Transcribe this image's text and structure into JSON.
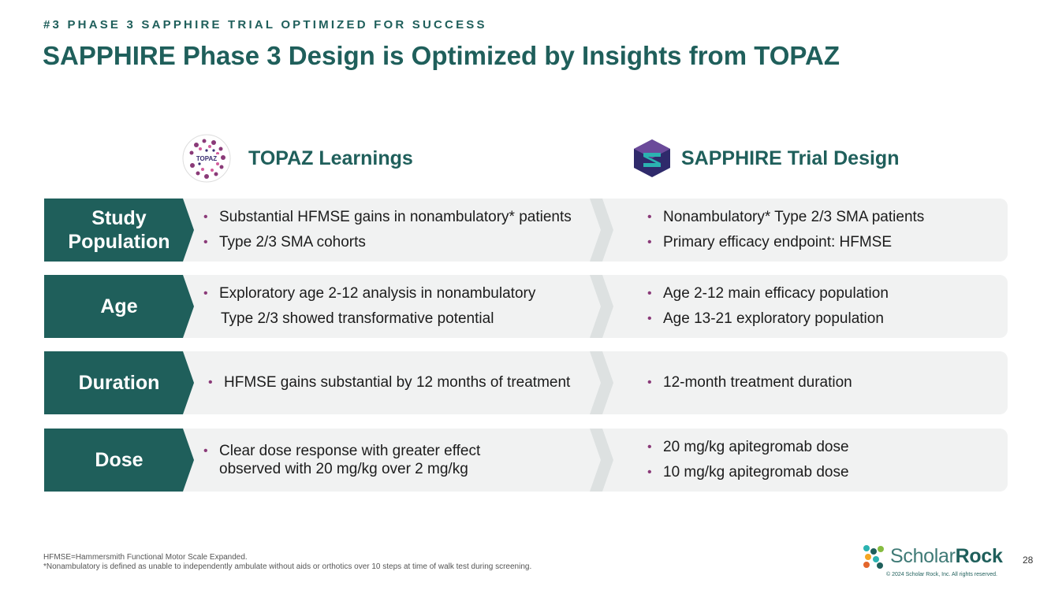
{
  "header": {
    "eyebrow": "#3 PHASE 3 SAPPHIRE TRIAL OPTIMIZED FOR SUCCESS",
    "title": "SAPPHIRE Phase 3 Design is Optimized by Insights from TOPAZ"
  },
  "columns": {
    "topaz": {
      "logo_text": "TOPAZ",
      "heading": "TOPAZ Learnings"
    },
    "sapphire": {
      "heading": "SAPPHIRE Trial Design"
    }
  },
  "colors": {
    "primary": "#1f5f5b",
    "row_bg": "#f1f2f2",
    "bullet": "#8a3a78"
  },
  "rows": [
    {
      "label_line1": "Study",
      "label_line2": "Population",
      "left": [
        "Substantial HFMSE gains in nonambulatory* patients",
        "Type 2/3 SMA cohorts"
      ],
      "right": [
        "Nonambulatory* Type 2/3 SMA patients",
        "Primary efficacy endpoint: HFMSE"
      ]
    },
    {
      "label": "Age",
      "left_line1": "Exploratory age 2-12 analysis in nonambulatory",
      "left_line2": "Type 2/3 showed transformative potential",
      "right": [
        "Age 2-12 main efficacy population",
        "Age 13-21 exploratory population"
      ]
    },
    {
      "label": "Duration",
      "left": [
        "HFMSE gains substantial by 12 months of treatment"
      ],
      "right": [
        "12-month treatment duration"
      ]
    },
    {
      "label": "Dose",
      "left_line1": "Clear dose response with greater effect",
      "left_line2": "observed with 20 mg/kg over 2 mg/kg",
      "right": [
        "20 mg/kg apitegromab dose",
        "10 mg/kg apitegromab dose"
      ]
    }
  ],
  "footnotes": {
    "line1": "HFMSE=Hammersmith Functional Motor Scale Expanded.",
    "line2": "*Nonambulatory is defined as unable to independently ambulate without aids or orthotics over 10 steps at time of walk test during screening."
  },
  "brand": {
    "name_part1": "Scholar",
    "name_part2": "Rock",
    "copyright": "© 2024 Scholar Rock, Inc. All rights reserved.",
    "page_number": "28"
  }
}
